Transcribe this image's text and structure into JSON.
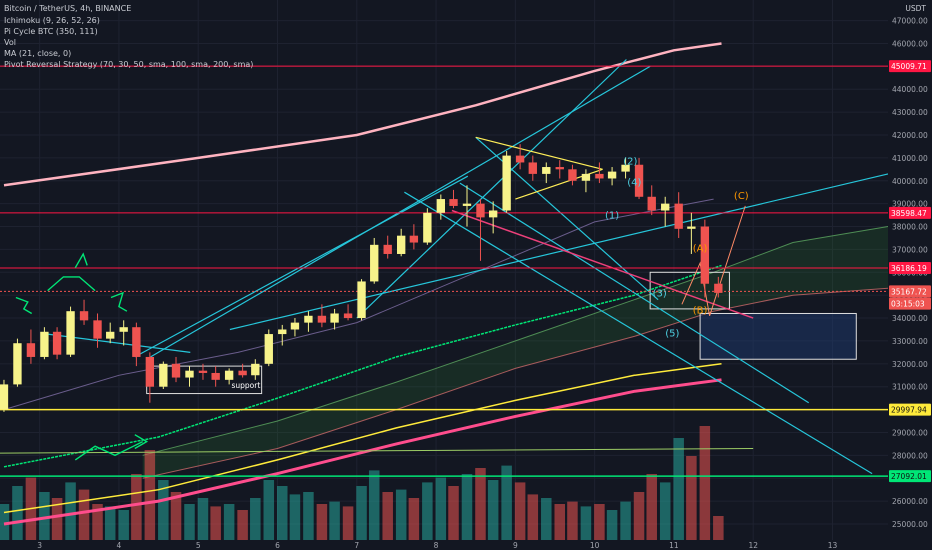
{
  "header": {
    "symbol_line": "Bitcoin / TetherUS, 4h, BINANCE",
    "indicators": [
      "Ichimoku (9, 26, 52, 26)",
      "Pi Cycle BTC (350, 111)",
      "Vol",
      "MA (21, close, 0)",
      "Pivot Reversal Strategy (70, 30, 50, sma, 100, sma, 200, sma)"
    ]
  },
  "quote_currency": "USDT",
  "annotations": {
    "support": "support",
    "waves": [
      {
        "text": "(1)",
        "x": 10.22,
        "y": 38350,
        "color": "#4dd0e1"
      },
      {
        "text": "(2)",
        "x": 10.45,
        "y": 40720,
        "color": "#4dd0e1"
      },
      {
        "text": "(3)",
        "x": 10.82,
        "y": 34950,
        "color": "#4dd0e1"
      },
      {
        "text": "(4)",
        "x": 10.5,
        "y": 39800,
        "color": "#4dd0e1"
      },
      {
        "text": "(5)",
        "x": 10.98,
        "y": 33200,
        "color": "#4dd0e1"
      },
      {
        "text": "(A)",
        "x": 11.33,
        "y": 36900,
        "color": "#ff9800"
      },
      {
        "text": "(B)",
        "x": 11.33,
        "y": 34200,
        "color": "#ff9800"
      },
      {
        "text": "(C)",
        "x": 11.85,
        "y": 39200,
        "color": "#ff9800"
      }
    ]
  },
  "colors": {
    "background": "#131722",
    "up": "#f7f38a",
    "down": "#ef5350",
    "teal": "#26c6da",
    "green_level": "#00e676",
    "yellow_level": "#ffeb3b",
    "red_level": "#ff1744",
    "pi_cycle": "#ffb3c0"
  },
  "chart_data": {
    "type": "candlestick",
    "x_axis": {
      "ticks": [
        3,
        4,
        5,
        6,
        7,
        8,
        9,
        10,
        11,
        12,
        13
      ],
      "labels": [
        "3",
        "4",
        "5",
        "6",
        "7",
        "8",
        "9",
        "10",
        "11",
        "12",
        "13"
      ],
      "xlim": [
        2.5,
        13.7
      ]
    },
    "y_axis": {
      "ylim": [
        24300,
        47900
      ],
      "tick_values": [
        25000,
        26000,
        27000,
        28000,
        29000,
        30000,
        31000,
        32000,
        33000,
        34000,
        35000,
        36000,
        37000,
        38000,
        39000,
        40000,
        41000,
        42000,
        43000,
        44000,
        45000,
        46000,
        47000
      ],
      "tick_labels": [
        "25000.00",
        "26000.00",
        "27000.00",
        "28000.00",
        "29000.00",
        "30000.00",
        "31000.00",
        "32000.00",
        "33000.00",
        "34000.00",
        "35000.00",
        "36000.00",
        "37000.00",
        "38000.00",
        "39000.00",
        "40000.00",
        "41000.00",
        "42000.00",
        "43000.00",
        "44000.00",
        "45000.00",
        "46000.00",
        "47000.00"
      ]
    },
    "price_tags": [
      {
        "label": "45009.71",
        "value": 45009.71,
        "color": "#ff1744"
      },
      {
        "label": "38598.47",
        "value": 38598.47,
        "color": "#ff1744"
      },
      {
        "label": "36186.19",
        "value": 36186.19,
        "color": "#ff1744"
      },
      {
        "label": "35167.72",
        "value": 35167.72,
        "color": "#ef5350"
      },
      {
        "label": "03:15:03",
        "value": 34630,
        "color": "#ef5350"
      },
      {
        "label": "29997.94",
        "value": 29997.94,
        "color": "#ffeb3b"
      },
      {
        "label": "27092.01",
        "value": 27092.01,
        "color": "#00e676"
      }
    ],
    "candles": [
      {
        "x": 2.55,
        "o": 30000,
        "h": 31300,
        "l": 29900,
        "c": 31100
      },
      {
        "x": 2.72,
        "o": 31100,
        "h": 33100,
        "l": 31000,
        "c": 32900
      },
      {
        "x": 2.89,
        "o": 32900,
        "h": 33500,
        "l": 32000,
        "c": 32300
      },
      {
        "x": 3.06,
        "o": 32300,
        "h": 33600,
        "l": 32200,
        "c": 33400
      },
      {
        "x": 3.22,
        "o": 33400,
        "h": 33600,
        "l": 32200,
        "c": 32400
      },
      {
        "x": 3.39,
        "o": 32400,
        "h": 34500,
        "l": 32300,
        "c": 34300
      },
      {
        "x": 3.56,
        "o": 34300,
        "h": 34800,
        "l": 33700,
        "c": 33900
      },
      {
        "x": 3.73,
        "o": 33900,
        "h": 34200,
        "l": 32700,
        "c": 33100
      },
      {
        "x": 3.89,
        "o": 33100,
        "h": 33800,
        "l": 32900,
        "c": 33400
      },
      {
        "x": 4.06,
        "o": 33400,
        "h": 33900,
        "l": 32800,
        "c": 33600
      },
      {
        "x": 4.22,
        "o": 33600,
        "h": 33800,
        "l": 31900,
        "c": 32300
      },
      {
        "x": 4.39,
        "o": 32300,
        "h": 32500,
        "l": 30300,
        "c": 31000
      },
      {
        "x": 4.56,
        "o": 31000,
        "h": 32100,
        "l": 30900,
        "c": 32000
      },
      {
        "x": 4.72,
        "o": 32000,
        "h": 32300,
        "l": 31200,
        "c": 31400
      },
      {
        "x": 4.89,
        "o": 31400,
        "h": 31900,
        "l": 31000,
        "c": 31700
      },
      {
        "x": 5.06,
        "o": 31700,
        "h": 32000,
        "l": 31300,
        "c": 31600
      },
      {
        "x": 5.22,
        "o": 31600,
        "h": 31900,
        "l": 31000,
        "c": 31300
      },
      {
        "x": 5.39,
        "o": 31300,
        "h": 31800,
        "l": 31100,
        "c": 31700
      },
      {
        "x": 5.56,
        "o": 31700,
        "h": 32000,
        "l": 31400,
        "c": 31500
      },
      {
        "x": 5.72,
        "o": 31500,
        "h": 32200,
        "l": 31300,
        "c": 32000
      },
      {
        "x": 5.89,
        "o": 32000,
        "h": 33500,
        "l": 31900,
        "c": 33300
      },
      {
        "x": 6.06,
        "o": 33300,
        "h": 33700,
        "l": 32800,
        "c": 33500
      },
      {
        "x": 6.22,
        "o": 33500,
        "h": 34000,
        "l": 33200,
        "c": 33800
      },
      {
        "x": 6.39,
        "o": 33800,
        "h": 34300,
        "l": 33400,
        "c": 34100
      },
      {
        "x": 6.56,
        "o": 34100,
        "h": 34600,
        "l": 33600,
        "c": 33800
      },
      {
        "x": 6.72,
        "o": 33800,
        "h": 34400,
        "l": 33500,
        "c": 34200
      },
      {
        "x": 6.89,
        "o": 34200,
        "h": 34600,
        "l": 33900,
        "c": 34000
      },
      {
        "x": 7.06,
        "o": 34000,
        "h": 35700,
        "l": 33900,
        "c": 35600
      },
      {
        "x": 7.22,
        "o": 35600,
        "h": 37500,
        "l": 35500,
        "c": 37200
      },
      {
        "x": 7.39,
        "o": 37200,
        "h": 37600,
        "l": 36600,
        "c": 36800
      },
      {
        "x": 7.56,
        "o": 36800,
        "h": 37900,
        "l": 36700,
        "c": 37600
      },
      {
        "x": 7.72,
        "o": 37600,
        "h": 38100,
        "l": 37000,
        "c": 37300
      },
      {
        "x": 7.89,
        "o": 37300,
        "h": 38800,
        "l": 37200,
        "c": 38600
      },
      {
        "x": 8.06,
        "o": 38600,
        "h": 39400,
        "l": 38300,
        "c": 39200
      },
      {
        "x": 8.22,
        "o": 39200,
        "h": 39600,
        "l": 38800,
        "c": 38900
      },
      {
        "x": 8.39,
        "o": 38900,
        "h": 39800,
        "l": 38000,
        "c": 39000
      },
      {
        "x": 8.56,
        "o": 39000,
        "h": 39200,
        "l": 36500,
        "c": 38400
      },
      {
        "x": 8.72,
        "o": 38400,
        "h": 39100,
        "l": 37700,
        "c": 38700
      },
      {
        "x": 8.89,
        "o": 38700,
        "h": 41300,
        "l": 38600,
        "c": 41100
      },
      {
        "x": 9.06,
        "o": 41100,
        "h": 41600,
        "l": 40500,
        "c": 40800
      },
      {
        "x": 9.22,
        "o": 40800,
        "h": 41100,
        "l": 40000,
        "c": 40300
      },
      {
        "x": 9.39,
        "o": 40300,
        "h": 40800,
        "l": 39900,
        "c": 40600
      },
      {
        "x": 9.56,
        "o": 40600,
        "h": 40900,
        "l": 40100,
        "c": 40500
      },
      {
        "x": 9.72,
        "o": 40500,
        "h": 40700,
        "l": 39800,
        "c": 40000
      },
      {
        "x": 9.89,
        "o": 40000,
        "h": 40500,
        "l": 39500,
        "c": 40300
      },
      {
        "x": 10.06,
        "o": 40300,
        "h": 40800,
        "l": 39900,
        "c": 40100
      },
      {
        "x": 10.22,
        "o": 40100,
        "h": 40600,
        "l": 39800,
        "c": 40400
      },
      {
        "x": 10.39,
        "o": 40400,
        "h": 41000,
        "l": 40100,
        "c": 40700
      },
      {
        "x": 10.56,
        "o": 40700,
        "h": 41000,
        "l": 39200,
        "c": 39300
      },
      {
        "x": 10.72,
        "o": 39300,
        "h": 39800,
        "l": 38500,
        "c": 38700
      },
      {
        "x": 10.89,
        "o": 38700,
        "h": 39300,
        "l": 38000,
        "c": 39000
      },
      {
        "x": 11.06,
        "o": 39000,
        "h": 39500,
        "l": 37500,
        "c": 37900
      },
      {
        "x": 11.22,
        "o": 37900,
        "h": 38600,
        "l": 36800,
        "c": 38000
      },
      {
        "x": 11.39,
        "o": 38000,
        "h": 38300,
        "l": 34900,
        "c": 35500
      },
      {
        "x": 11.56,
        "o": 35500,
        "h": 35800,
        "l": 34900,
        "c": 35100
      }
    ],
    "volume": [
      {
        "x": 2.55,
        "v": 0.3,
        "up": true
      },
      {
        "x": 2.72,
        "v": 0.45,
        "up": true
      },
      {
        "x": 2.89,
        "v": 0.52,
        "up": false
      },
      {
        "x": 3.06,
        "v": 0.4,
        "up": true
      },
      {
        "x": 3.22,
        "v": 0.35,
        "up": false
      },
      {
        "x": 3.39,
        "v": 0.48,
        "up": true
      },
      {
        "x": 3.56,
        "v": 0.42,
        "up": false
      },
      {
        "x": 3.73,
        "v": 0.3,
        "up": false
      },
      {
        "x": 3.89,
        "v": 0.28,
        "up": true
      },
      {
        "x": 4.06,
        "v": 0.25,
        "up": true
      },
      {
        "x": 4.22,
        "v": 0.55,
        "up": false
      },
      {
        "x": 4.39,
        "v": 0.75,
        "up": false
      },
      {
        "x": 4.56,
        "v": 0.5,
        "up": true
      },
      {
        "x": 4.72,
        "v": 0.4,
        "up": false
      },
      {
        "x": 4.89,
        "v": 0.3,
        "up": true
      },
      {
        "x": 5.06,
        "v": 0.35,
        "up": true
      },
      {
        "x": 5.22,
        "v": 0.28,
        "up": false
      },
      {
        "x": 5.39,
        "v": 0.3,
        "up": true
      },
      {
        "x": 5.56,
        "v": 0.25,
        "up": false
      },
      {
        "x": 5.72,
        "v": 0.35,
        "up": true
      },
      {
        "x": 5.89,
        "v": 0.5,
        "up": true
      },
      {
        "x": 6.06,
        "v": 0.45,
        "up": true
      },
      {
        "x": 6.22,
        "v": 0.38,
        "up": true
      },
      {
        "x": 6.39,
        "v": 0.4,
        "up": true
      },
      {
        "x": 6.56,
        "v": 0.3,
        "up": false
      },
      {
        "x": 6.72,
        "v": 0.32,
        "up": true
      },
      {
        "x": 6.89,
        "v": 0.28,
        "up": false
      },
      {
        "x": 7.06,
        "v": 0.45,
        "up": true
      },
      {
        "x": 7.22,
        "v": 0.58,
        "up": true
      },
      {
        "x": 7.39,
        "v": 0.4,
        "up": false
      },
      {
        "x": 7.56,
        "v": 0.42,
        "up": true
      },
      {
        "x": 7.72,
        "v": 0.35,
        "up": false
      },
      {
        "x": 7.89,
        "v": 0.48,
        "up": true
      },
      {
        "x": 8.06,
        "v": 0.52,
        "up": true
      },
      {
        "x": 8.22,
        "v": 0.45,
        "up": false
      },
      {
        "x": 8.39,
        "v": 0.55,
        "up": true
      },
      {
        "x": 8.56,
        "v": 0.6,
        "up": false
      },
      {
        "x": 8.72,
        "v": 0.5,
        "up": true
      },
      {
        "x": 8.89,
        "v": 0.62,
        "up": true
      },
      {
        "x": 9.06,
        "v": 0.48,
        "up": false
      },
      {
        "x": 9.22,
        "v": 0.38,
        "up": false
      },
      {
        "x": 9.39,
        "v": 0.35,
        "up": true
      },
      {
        "x": 9.56,
        "v": 0.3,
        "up": false
      },
      {
        "x": 9.72,
        "v": 0.32,
        "up": false
      },
      {
        "x": 9.89,
        "v": 0.28,
        "up": true
      },
      {
        "x": 10.06,
        "v": 0.3,
        "up": false
      },
      {
        "x": 10.22,
        "v": 0.25,
        "up": true
      },
      {
        "x": 10.39,
        "v": 0.32,
        "up": true
      },
      {
        "x": 10.56,
        "v": 0.4,
        "up": false
      },
      {
        "x": 10.72,
        "v": 0.55,
        "up": false
      },
      {
        "x": 10.89,
        "v": 0.48,
        "up": true
      },
      {
        "x": 11.06,
        "v": 0.85,
        "up": true
      },
      {
        "x": 11.22,
        "v": 0.7,
        "up": false
      },
      {
        "x": 11.39,
        "v": 0.95,
        "up": false
      },
      {
        "x": 11.56,
        "v": 0.2,
        "up": false
      }
    ],
    "lines": {
      "pi_cycle": [
        [
          2.55,
          39800
        ],
        [
          5,
          41000
        ],
        [
          7,
          42000
        ],
        [
          8.5,
          43300
        ],
        [
          10,
          44800
        ],
        [
          11,
          45700
        ],
        [
          11.6,
          46000
        ]
      ],
      "ma21": [
        [
          2.55,
          30000
        ],
        [
          4,
          31500
        ],
        [
          5.5,
          32500
        ],
        [
          7,
          33800
        ],
        [
          8.5,
          36000
        ],
        [
          10,
          38200
        ],
        [
          11.5,
          39200
        ]
      ],
      "green_ma": [
        [
          2.55,
          27500
        ],
        [
          4.5,
          28800
        ],
        [
          6,
          30500
        ],
        [
          7.5,
          32300
        ],
        [
          9,
          33700
        ],
        [
          10.5,
          35000
        ],
        [
          11.6,
          36300
        ]
      ],
      "yellow_ma": [
        [
          2.55,
          25500
        ],
        [
          4.5,
          26500
        ],
        [
          6,
          27800
        ],
        [
          7.5,
          29200
        ],
        [
          9,
          30400
        ],
        [
          10.5,
          31500
        ],
        [
          11.6,
          32000
        ]
      ],
      "red_ma": [
        [
          2.55,
          25000
        ],
        [
          4.5,
          26000
        ],
        [
          6,
          27200
        ],
        [
          7.5,
          28500
        ],
        [
          9,
          29700
        ],
        [
          10.5,
          30800
        ],
        [
          11.6,
          31300
        ]
      ],
      "cloud_upper": [
        [
          4.3,
          28000
        ],
        [
          6,
          29500
        ],
        [
          7.5,
          31200
        ],
        [
          9,
          33000
        ],
        [
          10.5,
          34800
        ],
        [
          11.5,
          36000
        ],
        [
          12.5,
          37300
        ],
        [
          13.7,
          38000
        ]
      ],
      "cloud_lower": [
        [
          4.3,
          27000
        ],
        [
          6,
          28300
        ],
        [
          7.5,
          30000
        ],
        [
          9,
          31800
        ],
        [
          10.5,
          33200
        ],
        [
          11.5,
          34300
        ],
        [
          12.5,
          35000
        ],
        [
          13.7,
          35300
        ]
      ],
      "teal_trends": [
        [
          [
            4.2,
            32300
          ],
          [
            8.4,
            40200
          ]
        ],
        [
          [
            4.4,
            32300
          ],
          [
            10.7,
            45000
          ]
        ],
        [
          [
            7.0,
            34000
          ],
          [
            10.4,
            45300
          ]
        ],
        [
          [
            8.5,
            41900
          ],
          [
            10.8,
            34800
          ]
        ],
        [
          [
            8.3,
            39900
          ],
          [
            12.7,
            30300
          ]
        ],
        [
          [
            7.6,
            39500
          ],
          [
            13.5,
            27200
          ]
        ],
        [
          [
            5.4,
            33500
          ],
          [
            13.7,
            40300
          ]
        ],
        [
          [
            3.1,
            33300
          ],
          [
            4.9,
            32500
          ]
        ]
      ],
      "yellow_triangle": [
        [
          [
            8.5,
            41900
          ],
          [
            10.1,
            40500
          ]
        ],
        [
          [
            9.0,
            39200
          ],
          [
            10.1,
            40500
          ]
        ]
      ],
      "pink_trend": [
        [
          8.2,
          38700
        ],
        [
          12.0,
          34000
        ]
      ],
      "green_hline": [
        [
          2.5,
          28100
        ],
        [
          12.0,
          28300
        ]
      ]
    },
    "boxes": [
      {
        "name": "support-box",
        "x0": 4.35,
        "x1": 5.8,
        "y0": 30700,
        "y1": 31900,
        "color": "#e0e0e0"
      },
      {
        "name": "target-zone",
        "x0": 11.33,
        "x1": 13.3,
        "y0": 32200,
        "y1": 34200,
        "color": "#e0e0e0"
      },
      {
        "name": "breakdown-box",
        "x0": 10.7,
        "x1": 11.7,
        "y0": 34400,
        "y1": 36000,
        "color": "#e0e0e0"
      }
    ]
  }
}
